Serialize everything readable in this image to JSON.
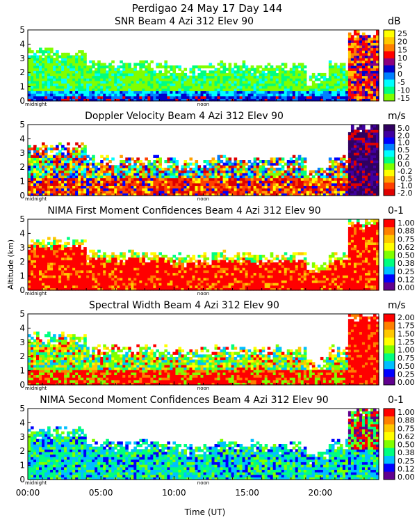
{
  "figure": {
    "title_line1": "Perdigao  24 May 17 Day 144",
    "ylabel": "Altitude (km)",
    "xlabel": "Time (UT)",
    "x_ticks": [
      "00:00",
      "05:00",
      "10:00",
      "15:00",
      "20:00"
    ],
    "marker_midnight": "midnight",
    "marker_noon": "noon"
  },
  "chart_data": [
    {
      "type": "heatmap",
      "title": "SNR Beam 4 Azi 312 Elev 90",
      "unit": "dB",
      "x_range_hours": [
        0,
        24
      ],
      "ylim": [
        0,
        5
      ],
      "y_ticks": [
        "0",
        "1",
        "2",
        "3",
        "4",
        "5"
      ],
      "colorbar_labels": [
        "25",
        "20",
        "15",
        "10",
        "5",
        "0",
        "-5",
        "-10",
        "-15"
      ],
      "colorbar_colors": [
        "#ffff00",
        "#ffc800",
        "#ff8000",
        "#ff0000",
        "#8b0080",
        "#0000cc",
        "#0080ff",
        "#00ffff",
        "#00ff80",
        "#80ff00"
      ]
    },
    {
      "type": "heatmap",
      "title": "Doppler Velocity Beam 4 Azi 312 Elev 90",
      "unit": "m/s",
      "x_range_hours": [
        0,
        24
      ],
      "ylim": [
        0,
        5
      ],
      "y_ticks": [
        "0",
        "1",
        "2",
        "3",
        "4",
        "5"
      ],
      "colorbar_labels": [
        "5.0",
        "2.0",
        "1.0",
        "0.5",
        "0.2",
        "0.0",
        "-0.2",
        "-0.5",
        "-1.0",
        "-2.0"
      ],
      "colorbar_colors": [
        "#300060",
        "#4000a0",
        "#0000ff",
        "#0080ff",
        "#00ffff",
        "#00ff80",
        "#80ff00",
        "#ffff00",
        "#ffa000",
        "#ff4000",
        "#e00000"
      ]
    },
    {
      "type": "heatmap",
      "title": "NIMA First Moment Confidences Beam 4 Azi 312 Elev 90",
      "unit": "0-1",
      "x_range_hours": [
        0,
        24
      ],
      "ylim": [
        0,
        5
      ],
      "y_ticks": [
        "0",
        "1",
        "2",
        "3",
        "4",
        "5"
      ],
      "colorbar_labels": [
        "1.00",
        "0.88",
        "0.75",
        "0.62",
        "0.50",
        "0.38",
        "0.25",
        "0.12",
        "0.00"
      ],
      "colorbar_colors": [
        "#ff0000",
        "#ff8000",
        "#ffc800",
        "#ffff00",
        "#80ff00",
        "#00ff80",
        "#00c0ff",
        "#0000ff",
        "#60008f"
      ]
    },
    {
      "type": "heatmap",
      "title": "Spectral Width Beam 4 Azi 312 Elev 90",
      "unit": "m/s",
      "x_range_hours": [
        0,
        24
      ],
      "ylim": [
        0,
        5
      ],
      "y_ticks": [
        "0",
        "1",
        "2",
        "3",
        "4",
        "5"
      ],
      "colorbar_labels": [
        "2.00",
        "1.75",
        "1.50",
        "1.25",
        "1.00",
        "0.75",
        "0.50",
        "0.25",
        "0.00"
      ],
      "colorbar_colors": [
        "#ff0000",
        "#ff8000",
        "#ffc800",
        "#ffff00",
        "#80ff00",
        "#00ff80",
        "#00c0ff",
        "#0000ff",
        "#60008f"
      ]
    },
    {
      "type": "heatmap",
      "title": "NIMA Second Moment Confidences Beam 4 Azi 312 Elev 90",
      "unit": "0-1",
      "x_range_hours": [
        0,
        24
      ],
      "ylim": [
        0,
        5
      ],
      "y_ticks": [
        "0",
        "1",
        "2",
        "3",
        "4",
        "5"
      ],
      "colorbar_labels": [
        "1.00",
        "0.88",
        "0.75",
        "0.62",
        "0.50",
        "0.38",
        "0.25",
        "0.12",
        "0.00"
      ],
      "colorbar_colors": [
        "#ff0000",
        "#ff8000",
        "#ffc800",
        "#ffff00",
        "#80ff00",
        "#00ff80",
        "#00c0ff",
        "#0000ff",
        "#60008f"
      ]
    }
  ]
}
